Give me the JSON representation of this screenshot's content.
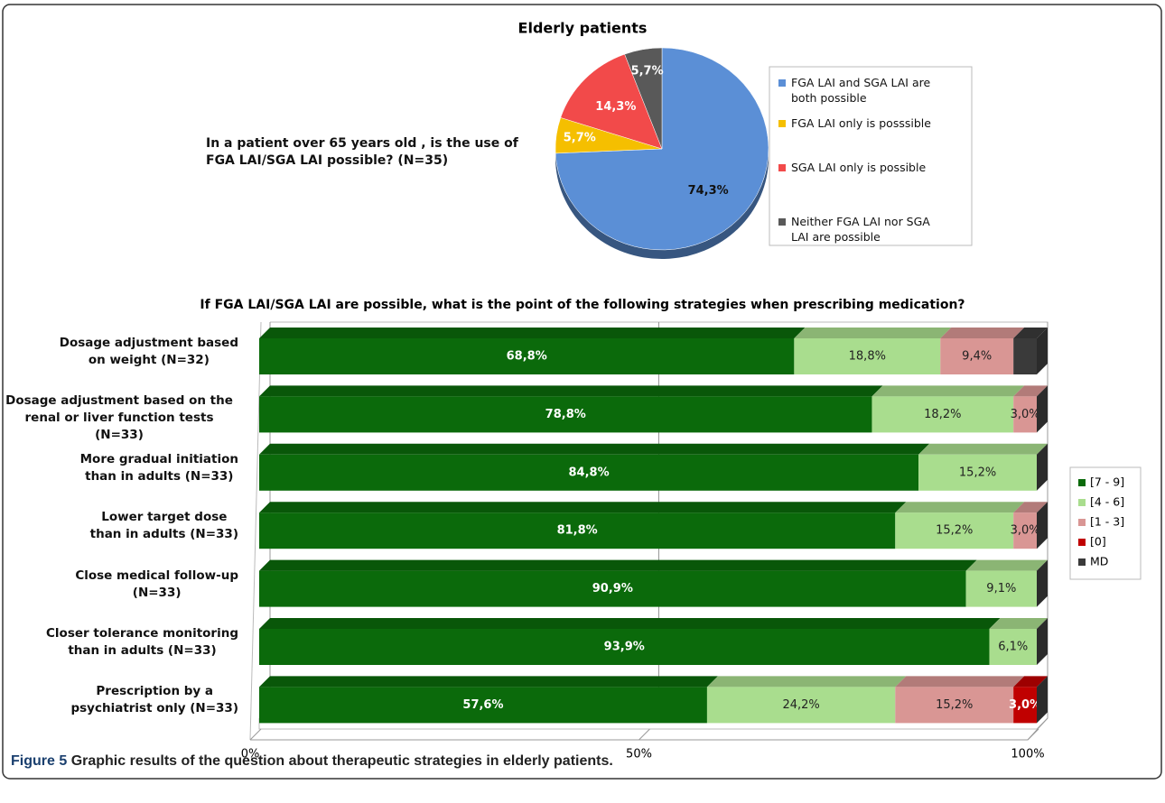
{
  "chart_data": [
    {
      "type": "pie",
      "title": "Elderly patients",
      "annotation": "In a patient over 65 years old , is the use of\nFGA LAI/SGA LAI possible? (N=35)",
      "categories": [
        "FGA LAI and SGA LAI are\nboth possible",
        "FGA LAI only is posssible",
        "SGA LAI only is possible",
        "Neither FGA LAI nor SGA\nLAI are possible"
      ],
      "values": [
        74.3,
        5.7,
        14.3,
        5.7
      ],
      "value_labels": [
        "74,3%",
        "5,7%",
        "14,3%",
        "5,7%"
      ],
      "colors": [
        "#5b8fd6",
        "#f5bf00",
        "#f24a4a",
        "#595959"
      ],
      "legend": "right"
    },
    {
      "type": "stacked-bar-horizontal",
      "title": "If FGA LAI/SGA LAI are possible, what is the point of the following strategies when prescribing medication?",
      "categories": [
        "Dosage adjustment based\non weight (N=32)",
        "Dosage adjustment based on the\nrenal or liver function tests (N=33)",
        "More gradual initiation\nthan in adults (N=33)",
        "Lower target dose\nthan in adults (N=33)",
        "Close medical follow-up\n(N=33)",
        "Closer tolerance monitoring\nthan in adults (N=33)",
        "Prescription by a\npsychiatrist only (N=33)"
      ],
      "series": [
        {
          "name": "[7 - 9]",
          "color": "#0b6a0b",
          "values": [
            68.8,
            78.8,
            84.8,
            81.8,
            90.9,
            93.9,
            57.6
          ],
          "value_labels": [
            "68,8%",
            "78,8%",
            "84,8%",
            "81,8%",
            "90,9%",
            "93,9%",
            "57,6%"
          ]
        },
        {
          "name": "[4 - 6]",
          "color": "#a9dd8e",
          "values": [
            18.8,
            18.2,
            15.2,
            15.2,
            9.1,
            6.1,
            24.2
          ],
          "value_labels": [
            "18,8%",
            "18,2%",
            "15,2%",
            "15,2%",
            "9,1%",
            "6,1%",
            "24,2%"
          ]
        },
        {
          "name": "[1 - 3]",
          "color": "#d99694",
          "values": [
            9.4,
            3.0,
            0,
            3.0,
            0,
            0,
            15.2
          ],
          "value_labels": [
            "9,4%",
            "3,0%",
            null,
            "3,0%",
            null,
            null,
            "15,2%"
          ]
        },
        {
          "name": "[0]",
          "color": "#c00000",
          "values": [
            0,
            0,
            0,
            0,
            0,
            0,
            3.0
          ],
          "value_labels": [
            null,
            null,
            null,
            null,
            null,
            null,
            "3,0%"
          ]
        },
        {
          "name": "MD",
          "color": "#3a3a3a",
          "values": [
            3.0,
            0,
            0,
            0,
            0,
            0,
            0
          ],
          "value_labels": [
            null,
            null,
            null,
            null,
            null,
            null,
            null
          ]
        }
      ],
      "xlim": [
        0,
        100
      ],
      "xticks": [
        {
          "value": 0,
          "label": "0%"
        },
        {
          "value": 50,
          "label": "50%"
        },
        {
          "value": 100,
          "label": "100%"
        }
      ],
      "grid": true,
      "legend": "right"
    }
  ],
  "caption": {
    "label": "Figure 5",
    "text": "Graphic results of the question about therapeutic strategies in elderly patients."
  }
}
